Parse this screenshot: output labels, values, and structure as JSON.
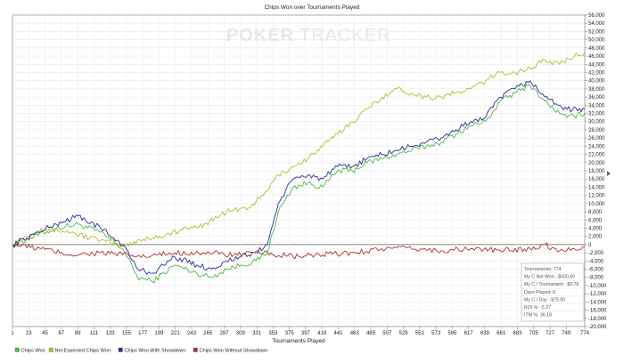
{
  "chart_data": {
    "type": "line",
    "title": "Chips Won over Tournaments Played",
    "xlabel": "Tournaments Played",
    "ylabel": "",
    "xlim": [
      1,
      774
    ],
    "ylim": [
      -20000,
      56000
    ],
    "grid": true,
    "legend_position": "bottom-left",
    "watermark": {
      "part1": "POKER",
      "part2": "TRACKER"
    },
    "x_ticks": [
      1,
      23,
      45,
      67,
      89,
      111,
      133,
      155,
      177,
      199,
      221,
      243,
      265,
      287,
      309,
      331,
      353,
      375,
      397,
      419,
      441,
      463,
      485,
      507,
      529,
      551,
      573,
      595,
      617,
      639,
      661,
      683,
      705,
      727,
      749,
      774
    ],
    "y_ticks": [
      -20000,
      -18000,
      -16000,
      -14000,
      -12000,
      -10000,
      -8000,
      -6000,
      -4000,
      -2000,
      0,
      2000,
      4000,
      6000,
      8000,
      10000,
      12000,
      14000,
      16000,
      18000,
      20000,
      22000,
      24000,
      26000,
      28000,
      30000,
      32000,
      34000,
      36000,
      38000,
      40000,
      42000,
      44000,
      46000,
      48000,
      50000,
      52000,
      54000,
      56000
    ],
    "series": [
      {
        "name": "Chips Won",
        "color": "#4cb848",
        "x": [
          1,
          30,
          60,
          90,
          120,
          150,
          170,
          190,
          220,
          250,
          270,
          290,
          310,
          330,
          345,
          360,
          380,
          400,
          420,
          440,
          460,
          480,
          500,
          520,
          540,
          560,
          580,
          600,
          620,
          640,
          660,
          680,
          700,
          710,
          720,
          740,
          750,
          774
        ],
        "y": [
          0,
          2000,
          4000,
          5000,
          3000,
          -1000,
          -8000,
          -9000,
          -5000,
          -7000,
          -8000,
          -6000,
          -5000,
          -4000,
          -2000,
          8000,
          14000,
          15000,
          14000,
          18000,
          18000,
          20000,
          21000,
          22000,
          23000,
          24000,
          25000,
          27000,
          29000,
          30000,
          35000,
          37000,
          39000,
          37000,
          35000,
          32000,
          31000,
          32000
        ]
      },
      {
        "name": "Net Expected Chips Won",
        "color": "#b8b830",
        "x": [
          1,
          40,
          80,
          120,
          150,
          170,
          200,
          230,
          260,
          290,
          320,
          340,
          360,
          380,
          400,
          420,
          440,
          460,
          480,
          500,
          520,
          540,
          560,
          580,
          600,
          620,
          640,
          660,
          680,
          700,
          720,
          740,
          760,
          774
        ],
        "y": [
          0,
          4000,
          3000,
          1000,
          -500,
          1000,
          2000,
          3500,
          5000,
          8000,
          9000,
          12000,
          17000,
          19000,
          21000,
          24000,
          27000,
          30000,
          33000,
          36000,
          38000,
          37000,
          36000,
          36000,
          37000,
          38000,
          40000,
          42000,
          42000,
          43000,
          45000,
          44000,
          46000,
          47000
        ]
      },
      {
        "name": "Chips Won With Showdown",
        "color": "#2a2a9a",
        "x": [
          1,
          30,
          60,
          90,
          120,
          150,
          170,
          190,
          220,
          250,
          270,
          290,
          310,
          330,
          345,
          360,
          380,
          400,
          420,
          440,
          460,
          480,
          500,
          520,
          540,
          560,
          580,
          600,
          620,
          640,
          660,
          680,
          700,
          710,
          720,
          740,
          750,
          774
        ],
        "y": [
          0,
          2500,
          5000,
          7000,
          4000,
          0,
          -6000,
          -7000,
          -3000,
          -5000,
          -6000,
          -4000,
          -3000,
          -2000,
          0,
          10000,
          16000,
          17000,
          16000,
          19000,
          19000,
          21000,
          22000,
          23000,
          24000,
          25000,
          26000,
          28000,
          30000,
          31000,
          36000,
          38000,
          40000,
          38000,
          36000,
          34000,
          33000,
          33000
        ]
      },
      {
        "name": "Chips Won Without Showdown",
        "color": "#a83232",
        "x": [
          1,
          40,
          80,
          120,
          150,
          180,
          220,
          260,
          300,
          340,
          380,
          420,
          460,
          500,
          540,
          580,
          620,
          660,
          700,
          720,
          740,
          774
        ],
        "y": [
          0,
          -1000,
          -2500,
          -2000,
          -2500,
          -3000,
          -2000,
          -2000,
          -2500,
          -2000,
          -3000,
          -2500,
          -2000,
          -1000,
          -1000,
          -1500,
          -1000,
          -1500,
          -1000,
          0,
          -1500,
          -500
        ]
      }
    ],
    "stats_box": [
      "Tournaments: 774",
      "My C Net Won: -$600.00",
      "My C / Tournament: -$0.78",
      "Days Played: 8",
      "My C / Day: -$75.00",
      "ROI %: -5.27",
      "ITM %: 36.18"
    ]
  }
}
